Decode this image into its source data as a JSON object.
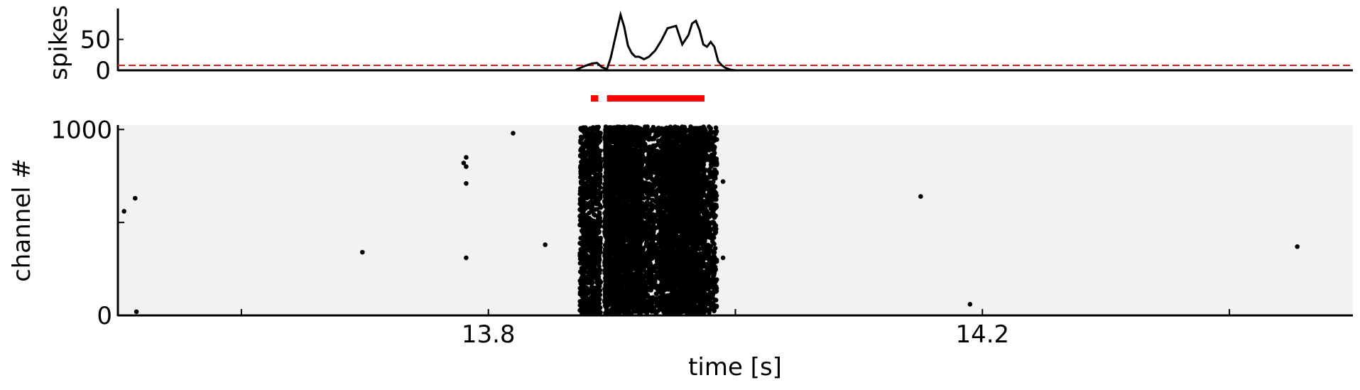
{
  "figure": {
    "colors": {
      "trace": "#000000",
      "threshold": "#e31a1c",
      "burst_bar": "#ff0000",
      "raster_bg": "#f2f2f2",
      "dots": "#000000"
    }
  },
  "chart_data": [
    {
      "type": "line",
      "panel": "spike-count",
      "ylabel": "spikes",
      "xlim": [
        13.5,
        14.5
      ],
      "ylim": [
        0,
        100
      ],
      "yticks": [
        "0",
        "50"
      ],
      "threshold": 8,
      "series": [
        {
          "x": [
            13.5,
            13.72,
            13.87,
            13.878,
            13.884,
            13.888,
            13.892,
            13.896,
            13.899,
            13.903,
            13.907,
            13.91,
            13.913,
            13.916,
            13.919,
            13.922,
            13.926,
            13.93,
            13.935,
            13.94,
            13.945,
            13.952,
            13.957,
            13.962,
            13.965,
            13.968,
            13.971,
            13.974,
            13.977,
            13.98,
            13.983,
            13.986,
            13.989,
            13.992,
            13.996,
            14.0,
            14.006,
            14.012,
            14.2,
            14.5
          ],
          "y": [
            0,
            0,
            0,
            7,
            11,
            12,
            5,
            2,
            20,
            55,
            90,
            70,
            40,
            28,
            22,
            22,
            18,
            22,
            32,
            48,
            68,
            72,
            42,
            57,
            76,
            80,
            65,
            42,
            38,
            46,
            38,
            15,
            8,
            4,
            1,
            0,
            0,
            0,
            0,
            0
          ]
        }
      ]
    },
    {
      "type": "bar",
      "panel": "burst-markers",
      "intervals": [
        [
          13.883,
          13.889
        ],
        [
          13.896,
          13.975
        ]
      ]
    },
    {
      "type": "scatter",
      "panel": "raster",
      "xlabel": "time [s]",
      "ylabel": "channel #",
      "xlim": [
        13.5,
        14.5
      ],
      "ylim": [
        0,
        1024
      ],
      "xticks": [
        "13.8",
        "14.2"
      ],
      "yticks": [
        "0",
        "1000"
      ],
      "sparse_points": [
        {
          "x": 13.505,
          "y": 560
        },
        {
          "x": 13.514,
          "y": 630
        },
        {
          "x": 13.515,
          "y": 20
        },
        {
          "x": 13.698,
          "y": 340
        },
        {
          "x": 13.78,
          "y": 820
        },
        {
          "x": 13.782,
          "y": 850
        },
        {
          "x": 13.782,
          "y": 800
        },
        {
          "x": 13.782,
          "y": 710
        },
        {
          "x": 13.782,
          "y": 310
        },
        {
          "x": 13.82,
          "y": 980
        },
        {
          "x": 13.846,
          "y": 380
        },
        {
          "x": 13.99,
          "y": 720
        },
        {
          "x": 13.99,
          "y": 310
        },
        {
          "x": 14.15,
          "y": 640
        },
        {
          "x": 14.19,
          "y": 60
        },
        {
          "x": 14.455,
          "y": 370
        }
      ],
      "dense_bursts": [
        {
          "x_start": 13.874,
          "x_end": 13.891,
          "density": 900
        },
        {
          "x_start": 13.894,
          "x_end": 13.924,
          "density": 2500
        },
        {
          "x_start": 13.924,
          "x_end": 13.94,
          "density": 700
        },
        {
          "x_start": 13.94,
          "x_end": 13.975,
          "density": 3000
        },
        {
          "x_start": 13.975,
          "x_end": 13.985,
          "density": 400
        }
      ]
    }
  ]
}
